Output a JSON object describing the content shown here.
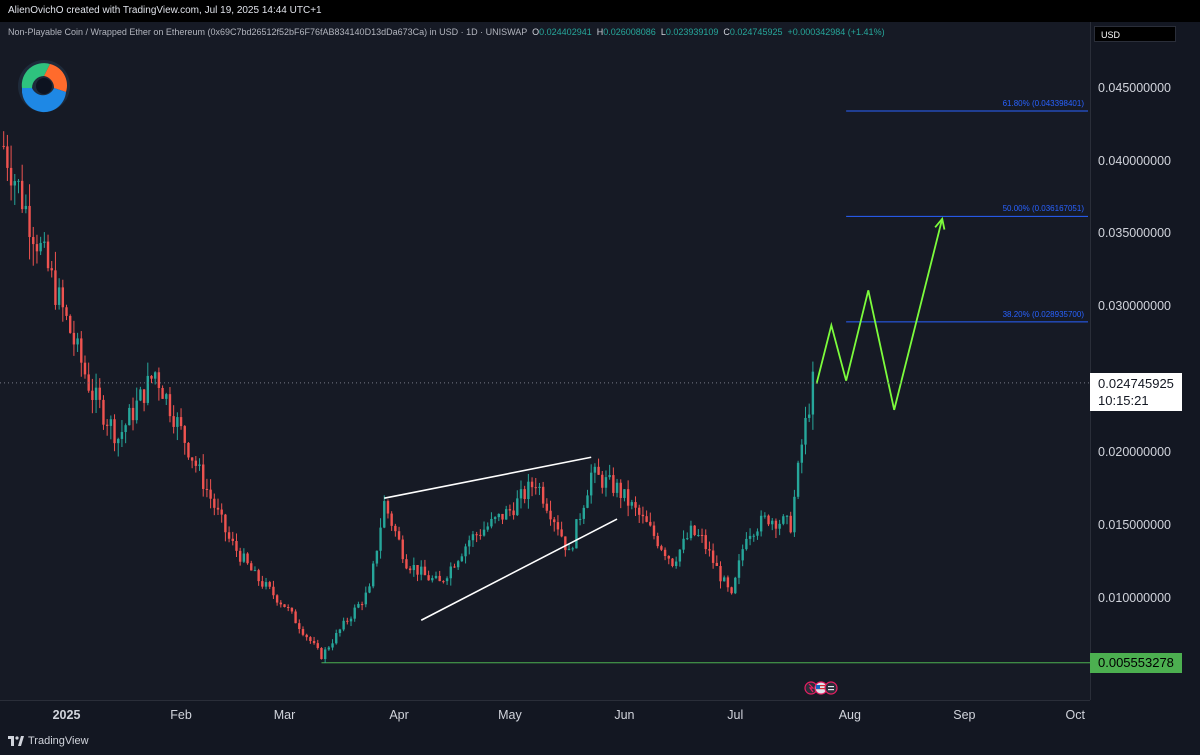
{
  "header": {
    "caption": "AlienOvichO created with TradingView.com, Jul 19, 2025 14:44 UTC+1"
  },
  "symbol": {
    "name": "Non-Playable Coin / Wrapped Ether on Ethereum (0x69C7bd26512f52bF6F76fAB834140D13dDa673Ca) in USD · 1D · UNISWAP",
    "o_label": "O",
    "o": "0.024402941",
    "h_label": "H",
    "h": "0.026008086",
    "l_label": "L",
    "l": "0.023939109",
    "c_label": "C",
    "c": "0.024745925",
    "change": "+0.000342984 (+1.41%)"
  },
  "price_axis": {
    "currency": "USD",
    "ticks": [
      "0.045000000",
      "0.040000000",
      "0.035000000",
      "0.030000000",
      "0.020000000",
      "0.015000000",
      "0.010000000"
    ],
    "current_price": "0.024745925",
    "countdown": "10:15:21",
    "low_price": "0.005553278"
  },
  "time_axis": {
    "ticks": [
      "2025",
      "Feb",
      "Mar",
      "Apr",
      "May",
      "Jun",
      "Jul",
      "Aug",
      "Sep",
      "Oct"
    ]
  },
  "fib_levels": [
    {
      "label": "61.80% (0.043398401)",
      "price": 0.043398401
    },
    {
      "label": "50.00% (0.036167051)",
      "price": 0.036167051
    },
    {
      "label": "38.20% (0.028935700)",
      "price": 0.0289357
    }
  ],
  "footer": {
    "brand": "TradingView"
  },
  "colors": {
    "up": "#26a69a",
    "down": "#ef5350",
    "projection": "#7cfc3c",
    "fib": "#2962ff",
    "support": "#4caf50",
    "wedge": "#ffffff"
  },
  "chart_data": {
    "type": "candlestick",
    "title": "Non-Playable Coin / Wrapped Ether on Ethereum",
    "x_range": [
      "2024-12-14",
      "2025-10-05"
    ],
    "y_range": [
      0.003,
      0.0495
    ],
    "current_price": 0.024745925,
    "support_level": 0.005553278,
    "trend_path": [
      [
        "2024-12-15",
        0.041
      ],
      [
        "2024-12-22",
        0.036
      ],
      [
        "2025-01-01",
        0.029
      ],
      [
        "2025-01-08",
        0.024
      ],
      [
        "2025-01-15",
        0.021
      ],
      [
        "2025-01-25",
        0.0255
      ],
      [
        "2025-01-31",
        0.022
      ],
      [
        "2025-02-07",
        0.018
      ],
      [
        "2025-02-14",
        0.014
      ],
      [
        "2025-02-21",
        0.0115
      ],
      [
        "2025-03-01",
        0.0095
      ],
      [
        "2025-03-11",
        0.006
      ],
      [
        "2025-03-18",
        0.0085
      ],
      [
        "2025-03-24",
        0.0105
      ],
      [
        "2025-03-28",
        0.0165
      ],
      [
        "2025-04-03",
        0.0125
      ],
      [
        "2025-04-08",
        0.0115
      ],
      [
        "2025-04-12",
        0.011
      ],
      [
        "2025-04-20",
        0.014
      ],
      [
        "2025-05-01",
        0.016
      ],
      [
        "2025-05-08",
        0.018
      ],
      [
        "2025-05-14",
        0.015
      ],
      [
        "2025-05-17",
        0.013
      ],
      [
        "2025-05-23",
        0.0185
      ],
      [
        "2025-05-30",
        0.0175
      ],
      [
        "2025-06-07",
        0.015
      ],
      [
        "2025-06-14",
        0.0125
      ],
      [
        "2025-06-19",
        0.0145
      ],
      [
        "2025-06-22",
        0.014
      ],
      [
        "2025-06-30",
        0.01
      ],
      [
        "2025-07-04",
        0.0145
      ],
      [
        "2025-07-10",
        0.0155
      ],
      [
        "2025-07-16",
        0.015
      ],
      [
        "2025-07-19",
        0.0205
      ],
      [
        "2025-07-22",
        0.0247
      ]
    ],
    "wedge_upper": [
      [
        "2025-03-28",
        0.01684
      ],
      [
        "2025-05-23",
        0.01965
      ]
    ],
    "wedge_lower": [
      [
        "2025-04-07",
        0.00847
      ],
      [
        "2025-05-30",
        0.01541
      ]
    ],
    "projection": [
      [
        "2025-07-23",
        0.0247
      ],
      [
        "2025-07-27",
        0.0287
      ],
      [
        "2025-07-31",
        0.0249
      ],
      [
        "2025-08-06",
        0.0311
      ],
      [
        "2025-08-13",
        0.0229
      ],
      [
        "2025-08-26",
        0.036
      ]
    ]
  }
}
